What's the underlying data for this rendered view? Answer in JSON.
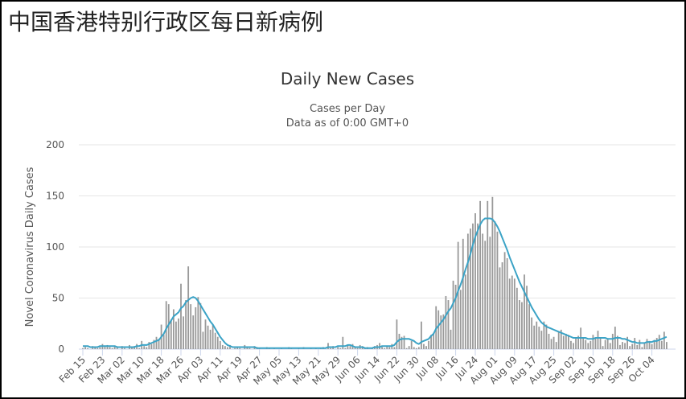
{
  "header": {
    "title": "中国香港特别行政区每日新病例"
  },
  "chart_data": {
    "type": "bar",
    "title": "Daily New Cases",
    "subtitle": [
      "Cases per Day",
      "Data as of 0:00 GMT+0"
    ],
    "y_label": "Novel Coronavirus Daily Cases",
    "ylim": [
      0,
      200
    ],
    "yticks": [
      0,
      50,
      100,
      150,
      200
    ],
    "grid": true,
    "categories": [
      "Feb 15",
      null,
      null,
      null,
      null,
      null,
      null,
      null,
      "Feb 23",
      null,
      null,
      null,
      null,
      null,
      null,
      null,
      "Mar 02",
      null,
      null,
      null,
      null,
      null,
      null,
      null,
      "Mar 10",
      null,
      null,
      null,
      null,
      null,
      null,
      null,
      "Mar 18",
      null,
      null,
      null,
      null,
      null,
      null,
      null,
      "Mar 26",
      null,
      null,
      null,
      null,
      null,
      null,
      null,
      "Apr 03",
      null,
      null,
      null,
      null,
      null,
      null,
      null,
      "Apr 11",
      null,
      null,
      null,
      null,
      null,
      null,
      null,
      "Apr 19",
      null,
      null,
      null,
      null,
      null,
      null,
      null,
      "Apr 27",
      null,
      null,
      null,
      null,
      null,
      null,
      null,
      "May 05",
      null,
      null,
      null,
      null,
      null,
      null,
      null,
      "May 13",
      null,
      null,
      null,
      null,
      null,
      null,
      null,
      "May 21",
      null,
      null,
      null,
      null,
      null,
      null,
      null,
      "May 29",
      null,
      null,
      null,
      null,
      null,
      null,
      null,
      "Jun 06",
      null,
      null,
      null,
      null,
      null,
      null,
      null,
      "Jun 14",
      null,
      null,
      null,
      null,
      null,
      null,
      null,
      "Jun 22",
      null,
      null,
      null,
      null,
      null,
      null,
      null,
      "Jun 30",
      null,
      null,
      null,
      null,
      null,
      null,
      null,
      "Jul 08",
      null,
      null,
      null,
      null,
      null,
      null,
      null,
      "Jul 16",
      null,
      null,
      null,
      null,
      null,
      null,
      null,
      "Jul 24",
      null,
      null,
      null,
      null,
      null,
      null,
      null,
      "Aug 01",
      null,
      null,
      null,
      null,
      null,
      null,
      null,
      "Aug 09",
      null,
      null,
      null,
      null,
      null,
      null,
      null,
      "Aug 17",
      null,
      null,
      null,
      null,
      null,
      null,
      null,
      "Aug 25",
      null,
      null,
      null,
      null,
      null,
      null,
      null,
      "Sep 02",
      null,
      null,
      null,
      null,
      null,
      null,
      null,
      "Sep 10",
      null,
      null,
      null,
      null,
      null,
      null,
      null,
      "Sep 18",
      null,
      null,
      null,
      null,
      null,
      null,
      null,
      "Sep 26",
      null,
      null,
      null,
      null,
      null,
      null,
      null,
      "Oct 04",
      null,
      null,
      null,
      null,
      null,
      null
    ],
    "series": [
      {
        "type": "bar",
        "color": "#999999",
        "values": [
          1,
          2,
          1,
          0,
          3,
          2,
          1,
          2,
          5,
          3,
          4,
          2,
          1,
          3,
          2,
          0,
          3,
          1,
          0,
          4,
          2,
          3,
          5,
          1,
          8,
          3,
          2,
          7,
          5,
          9,
          12,
          10,
          24,
          14,
          47,
          44,
          29,
          39,
          27,
          30,
          64,
          32,
          48,
          81,
          44,
          33,
          41,
          51,
          45,
          17,
          29,
          23,
          19,
          24,
          16,
          12,
          8,
          4,
          3,
          2,
          4,
          0,
          1,
          2,
          1,
          0,
          4,
          2,
          1,
          0,
          3,
          2,
          1,
          0,
          0,
          2,
          1,
          0,
          1,
          0,
          0,
          1,
          0,
          0,
          2,
          1,
          0,
          0,
          1,
          0,
          2,
          0,
          0,
          1,
          0,
          1,
          0,
          1,
          2,
          0,
          6,
          1,
          3,
          0,
          2,
          1,
          12,
          1,
          4,
          3,
          5,
          2,
          1,
          4,
          3,
          1,
          2,
          0,
          1,
          3,
          4,
          6,
          2,
          1,
          3,
          2,
          5,
          2,
          29,
          15,
          12,
          13,
          1,
          3,
          8,
          2,
          1,
          2,
          27,
          5,
          3,
          8,
          14,
          16,
          42,
          38,
          33,
          34,
          52,
          48,
          19,
          67,
          63,
          105,
          58,
          108,
          73,
          113,
          118,
          123,
          133,
          123,
          145,
          113,
          106,
          145,
          110,
          149,
          125,
          115,
          80,
          85,
          95,
          89,
          69,
          72,
          69,
          60,
          48,
          46,
          73,
          62,
          44,
          31,
          23,
          27,
          22,
          18,
          27,
          24,
          15,
          10,
          12,
          7,
          17,
          19,
          13,
          15,
          14,
          8,
          6,
          11,
          13,
          21,
          11,
          9,
          6,
          8,
          14,
          11,
          18,
          11,
          3,
          9,
          10,
          6,
          15,
          22,
          13,
          4,
          7,
          6,
          12,
          3,
          5,
          11,
          4,
          9,
          2,
          6,
          10,
          8,
          5,
          9,
          11,
          14,
          8,
          17,
          7
        ]
      },
      {
        "type": "line",
        "color": "#3ba3c6",
        "values": [
          3,
          3,
          3,
          2,
          2,
          2,
          2,
          3,
          3,
          3,
          3,
          3,
          3,
          3,
          2,
          2,
          2,
          2,
          2,
          2,
          2,
          2,
          3,
          3,
          4,
          4,
          4,
          5,
          6,
          7,
          8,
          9,
          12,
          15,
          20,
          24,
          28,
          32,
          34,
          36,
          40,
          42,
          46,
          48,
          50,
          51,
          50,
          47,
          43,
          39,
          35,
          31,
          27,
          24,
          20,
          16,
          12,
          9,
          6,
          4,
          3,
          2,
          2,
          2,
          2,
          2,
          2,
          2,
          2,
          2,
          2,
          1,
          1,
          1,
          1,
          1,
          1,
          1,
          1,
          1,
          1,
          1,
          1,
          1,
          1,
          1,
          1,
          1,
          1,
          1,
          1,
          1,
          1,
          1,
          1,
          1,
          1,
          1,
          1,
          1,
          2,
          2,
          2,
          2,
          3,
          3,
          3,
          3,
          4,
          4,
          3,
          2,
          2,
          2,
          2,
          1,
          1,
          1,
          1,
          2,
          2,
          2,
          3,
          3,
          3,
          3,
          3,
          4,
          7,
          9,
          10,
          10,
          10,
          10,
          9,
          8,
          6,
          5,
          7,
          8,
          9,
          10,
          13,
          15,
          20,
          23,
          26,
          29,
          33,
          37,
          40,
          45,
          50,
          57,
          63,
          70,
          78,
          85,
          93,
          102,
          110,
          116,
          122,
          126,
          128,
          128,
          128,
          127,
          124,
          120,
          115,
          109,
          103,
          97,
          90,
          84,
          78,
          72,
          66,
          61,
          56,
          51,
          46,
          41,
          37,
          33,
          29,
          26,
          24,
          22,
          21,
          20,
          19,
          18,
          17,
          16,
          15,
          14,
          13,
          12,
          11,
          11,
          11,
          11,
          11,
          11,
          10,
          10,
          10,
          11,
          11,
          11,
          11,
          11,
          10,
          10,
          10,
          11,
          11,
          11,
          10,
          10,
          9,
          8,
          7,
          7,
          6,
          6,
          6,
          6,
          7,
          7,
          7,
          8,
          8,
          9,
          10,
          11,
          12
        ]
      }
    ]
  }
}
